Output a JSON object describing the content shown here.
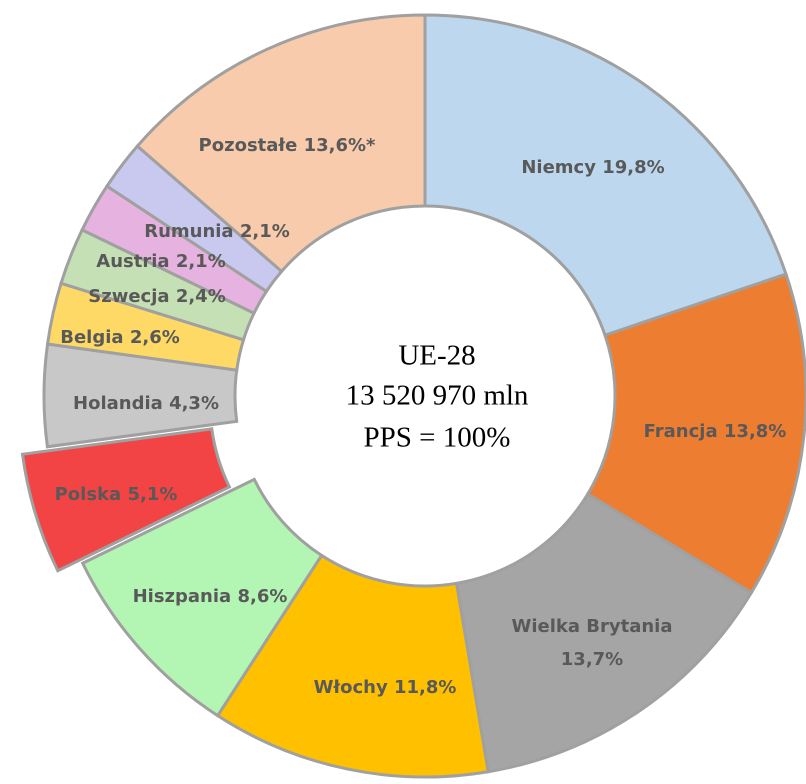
{
  "chart_data": {
    "type": "donut",
    "categories": [
      "Niemcy",
      "Francja",
      "Wielka Brytania",
      "Włochy",
      "Hiszpania",
      "Polska",
      "Holandia",
      "Belgia",
      "Szwecja",
      "Austria",
      "Rumunia",
      "Pozostałe"
    ],
    "values": [
      19.8,
      13.8,
      13.7,
      11.8,
      8.6,
      5.1,
      4.3,
      2.6,
      2.4,
      2.1,
      2.1,
      13.6
    ],
    "value_labels": [
      "19,8%",
      "13,8%",
      "13,7%",
      "11,8%",
      "8,6%",
      "5,1%",
      "4,3%",
      "2,6%",
      "2,4%",
      "2,1%",
      "2,1%",
      "13,6%*"
    ],
    "colors": [
      "#bdd7ee",
      "#ed7d31",
      "#a5a5a5",
      "#ffc000",
      "#b3f5b3",
      "#f24444",
      "#c8c8c8",
      "#ffd966",
      "#c5e0b4",
      "#e6b3e0",
      "#c9c9f0",
      "#f8cbad"
    ],
    "exploded": [
      "Polska"
    ],
    "center_text": [
      "UE-28",
      "13 520 970 mln",
      "PPS  = 100%"
    ]
  }
}
